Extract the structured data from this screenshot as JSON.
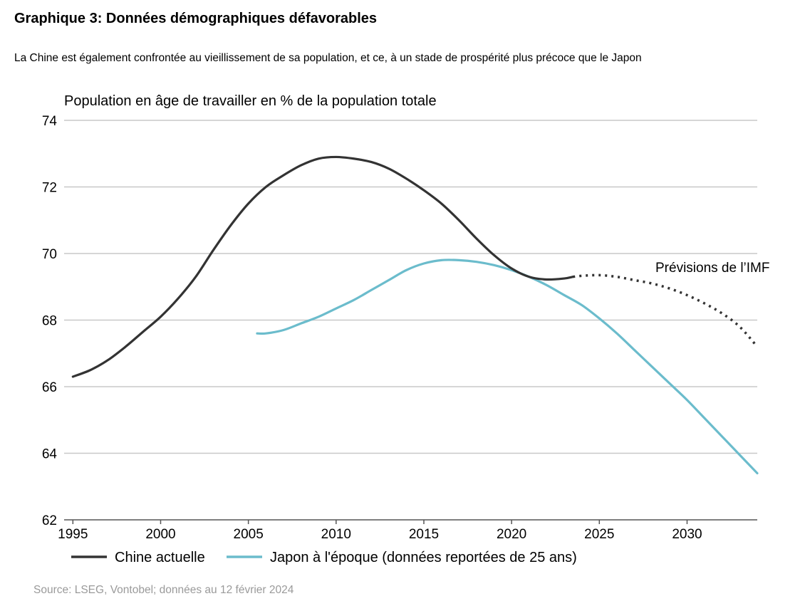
{
  "header": {
    "title": "Graphique 3: Données démographiques défavorables",
    "subtitle": "La Chine est également confrontée au vieillissement de sa population, et ce, à un stade de prospérité plus précoce que le Japon"
  },
  "footer": {
    "source": "Source: LSEG, Vontobel; données au 12 février 2024"
  },
  "chart_data": {
    "type": "line",
    "ylabel": "Population en âge de travailler en % de la population totale",
    "xlim": [
      1994.5,
      2034
    ],
    "ylim": [
      62,
      74
    ],
    "x_ticks": [
      "1995",
      "2000",
      "2005",
      "2010",
      "2015",
      "2020",
      "2025",
      "2030"
    ],
    "y_ticks": [
      "62",
      "64",
      "66",
      "68",
      "70",
      "72",
      "74"
    ],
    "grid": true,
    "legend_position": "bottom",
    "annotation": {
      "text": "Prévisions de l’IMF",
      "x": 2025.5,
      "y": 69.5
    },
    "series": [
      {
        "name": "Chine actuelle",
        "color": "#333333",
        "x": [
          1995,
          1996,
          1997,
          1998,
          1999,
          2000,
          2001,
          2002,
          2003,
          2004,
          2005,
          2006,
          2007,
          2008,
          2009,
          2010,
          2011,
          2012,
          2013,
          2014,
          2015,
          2016,
          2017,
          2018,
          2019,
          2020,
          2021,
          2022,
          2023,
          2023.5
        ],
        "y": [
          66.3,
          66.5,
          66.8,
          67.2,
          67.65,
          68.1,
          68.65,
          69.3,
          70.1,
          70.85,
          71.5,
          72.0,
          72.35,
          72.65,
          72.85,
          72.9,
          72.85,
          72.75,
          72.55,
          72.25,
          71.9,
          71.5,
          71.0,
          70.45,
          69.95,
          69.55,
          69.3,
          69.22,
          69.25,
          69.3
        ]
      },
      {
        "name": "Prévisions de l’IMF",
        "style": "dotted",
        "color": "#333333",
        "x": [
          2023.5,
          2024,
          2025,
          2026,
          2027,
          2028,
          2029,
          2030,
          2031,
          2032,
          2033,
          2034
        ],
        "y": [
          69.3,
          69.33,
          69.35,
          69.3,
          69.2,
          69.1,
          68.95,
          68.75,
          68.5,
          68.2,
          67.8,
          67.2
        ]
      },
      {
        "name": "Japon à l'époque (données reportées de 25 ans)",
        "color": "#6bbccc",
        "x": [
          2005.5,
          2006,
          2007,
          2008,
          2009,
          2010,
          2011,
          2012,
          2013,
          2014,
          2015,
          2016,
          2017,
          2018,
          2019,
          2020,
          2021,
          2022,
          2023,
          2024,
          2025,
          2026,
          2027,
          2028,
          2029,
          2030,
          2031,
          2032,
          2033,
          2034
        ],
        "y": [
          67.6,
          67.6,
          67.7,
          67.9,
          68.1,
          68.35,
          68.6,
          68.9,
          69.2,
          69.5,
          69.7,
          69.8,
          69.8,
          69.75,
          69.65,
          69.5,
          69.3,
          69.05,
          68.75,
          68.45,
          68.05,
          67.6,
          67.1,
          66.6,
          66.1,
          65.6,
          65.05,
          64.5,
          63.95,
          63.4
        ]
      }
    ]
  }
}
